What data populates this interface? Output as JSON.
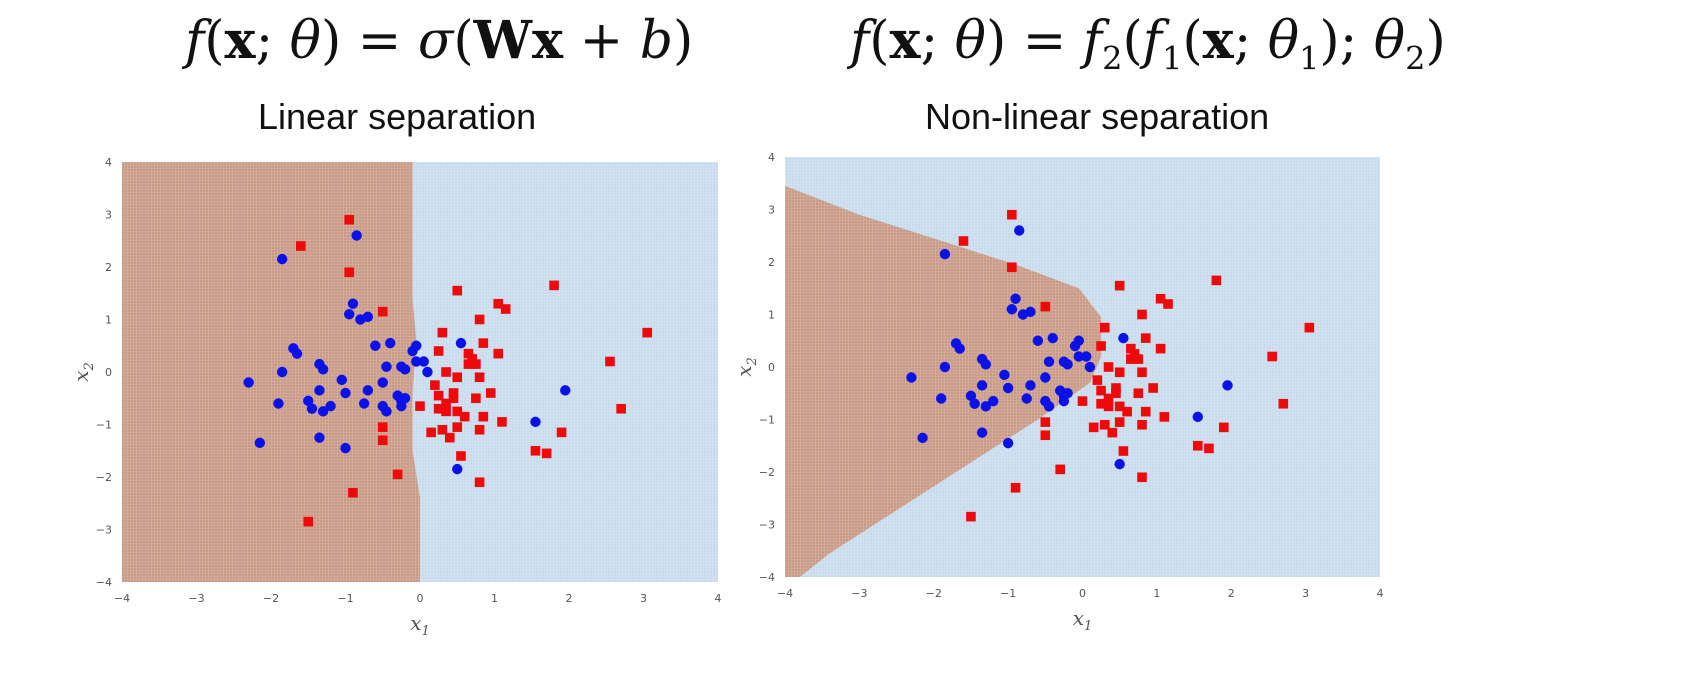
{
  "colors": {
    "region_red": "#c99a86",
    "region_blue": "#c8dbed",
    "point_blue": "#0a12e8",
    "point_red": "#ee0a0a"
  },
  "charts": [
    {
      "formula_label": "f(x; θ) = σ(Wx + b)",
      "subtitle": "Linear separation"
    },
    {
      "formula_label": "f(x; θ) = f2(f1(x; θ1); θ2)",
      "subtitle": "Non-linear separation"
    }
  ],
  "chart_data": [
    {
      "type": "scatter",
      "title": "Linear separation",
      "xlabel": "x1",
      "ylabel": "x2",
      "xlim": [
        -4,
        4
      ],
      "ylim": [
        -4,
        4
      ],
      "xticks": [
        "−4",
        "−3",
        "−2",
        "−1",
        "0",
        "1",
        "2",
        "3",
        "4"
      ],
      "yticks": [
        "−4",
        "−3",
        "−2",
        "−1",
        "0",
        "1",
        "2",
        "3",
        "4"
      ],
      "grid": false,
      "regions": [
        {
          "class": "red",
          "boundary": [
            [
              -0.1,
              4
            ],
            [
              -0.1,
              1.4
            ],
            [
              -0.05,
              0.6
            ],
            [
              -0.1,
              -0.4
            ],
            [
              -0.1,
              -1.5
            ],
            [
              0.0,
              -2.4
            ],
            [
              0.0,
              -4
            ]
          ]
        },
        {
          "class": "blue",
          "note": "remainder"
        }
      ],
      "series": [
        {
          "marker": "circle",
          "color": "#0a12e8",
          "points": [
            [
              -0.85,
              2.6
            ],
            [
              -1.85,
              2.15
            ],
            [
              -0.9,
              1.3
            ],
            [
              -0.95,
              1.1
            ],
            [
              -0.8,
              1.0
            ],
            [
              -0.7,
              1.05
            ],
            [
              -0.6,
              0.5
            ],
            [
              -0.4,
              0.55
            ],
            [
              -0.05,
              0.5
            ],
            [
              -0.1,
              0.4
            ],
            [
              -0.05,
              0.2
            ],
            [
              0.55,
              0.55
            ],
            [
              -1.7,
              0.45
            ],
            [
              -1.65,
              0.35
            ],
            [
              -1.35,
              0.15
            ],
            [
              -1.3,
              0.05
            ],
            [
              -1.85,
              0.0
            ],
            [
              -0.45,
              0.1
            ],
            [
              -0.2,
              0.05
            ],
            [
              -0.25,
              0.1
            ],
            [
              0.05,
              0.2
            ],
            [
              -1.05,
              -0.15
            ],
            [
              -2.3,
              -0.2
            ],
            [
              -1.35,
              -0.35
            ],
            [
              -1.0,
              -0.4
            ],
            [
              -0.7,
              -0.35
            ],
            [
              -0.3,
              -0.45
            ],
            [
              -1.5,
              -0.55
            ],
            [
              -1.9,
              -0.6
            ],
            [
              -1.2,
              -0.65
            ],
            [
              -1.3,
              -0.75
            ],
            [
              -1.45,
              -0.7
            ],
            [
              -0.75,
              -0.6
            ],
            [
              -0.25,
              -0.55
            ],
            [
              -0.5,
              -0.65
            ],
            [
              -0.25,
              -0.65
            ],
            [
              -1.35,
              -1.25
            ],
            [
              -2.15,
              -1.35
            ],
            [
              -1.0,
              -1.45
            ],
            [
              -0.45,
              -0.75
            ],
            [
              1.95,
              -0.35
            ],
            [
              1.55,
              -0.95
            ],
            [
              0.5,
              -1.85
            ],
            [
              0.1,
              0.0
            ],
            [
              -0.2,
              -0.5
            ],
            [
              -0.5,
              -0.2
            ]
          ]
        },
        {
          "marker": "square",
          "color": "#ee0a0a",
          "points": [
            [
              -0.95,
              2.9
            ],
            [
              -1.6,
              2.4
            ],
            [
              -0.95,
              1.9
            ],
            [
              1.8,
              1.65
            ],
            [
              0.5,
              1.55
            ],
            [
              1.05,
              1.3
            ],
            [
              1.15,
              1.2
            ],
            [
              -0.5,
              1.15
            ],
            [
              0.8,
              1.0
            ],
            [
              0.3,
              0.75
            ],
            [
              0.85,
              0.55
            ],
            [
              0.25,
              0.4
            ],
            [
              0.65,
              0.35
            ],
            [
              1.05,
              0.35
            ],
            [
              0.7,
              0.25
            ],
            [
              0.65,
              0.15
            ],
            [
              0.75,
              0.15
            ],
            [
              0.35,
              0.0
            ],
            [
              0.8,
              -0.1
            ],
            [
              0.5,
              -0.1
            ],
            [
              0.2,
              -0.25
            ],
            [
              0.95,
              -0.4
            ],
            [
              0.25,
              -0.45
            ],
            [
              0.45,
              -0.5
            ],
            [
              -0.0,
              -0.65
            ],
            [
              0.35,
              -0.6
            ],
            [
              0.25,
              -0.7
            ],
            [
              0.35,
              -0.75
            ],
            [
              0.5,
              -0.75
            ],
            [
              0.6,
              -0.85
            ],
            [
              0.85,
              -0.85
            ],
            [
              1.1,
              -0.95
            ],
            [
              0.5,
              -1.05
            ],
            [
              0.3,
              -1.1
            ],
            [
              0.15,
              -1.15
            ],
            [
              0.4,
              -1.25
            ],
            [
              -0.5,
              -1.05
            ],
            [
              -0.5,
              -1.3
            ],
            [
              0.8,
              -1.1
            ],
            [
              2.55,
              0.2
            ],
            [
              3.05,
              0.75
            ],
            [
              2.7,
              -0.7
            ],
            [
              1.9,
              -1.15
            ],
            [
              1.55,
              -1.5
            ],
            [
              1.7,
              -1.55
            ],
            [
              0.55,
              -1.6
            ],
            [
              -0.3,
              -1.95
            ],
            [
              0.8,
              -2.1
            ],
            [
              -0.9,
              -2.3
            ],
            [
              -1.5,
              -2.85
            ],
            [
              0.75,
              -0.5
            ],
            [
              0.45,
              -0.4
            ]
          ]
        }
      ]
    },
    {
      "type": "scatter",
      "title": "Non-linear separation",
      "xlabel": "x1",
      "ylabel": "x2",
      "xlim": [
        -4,
        4
      ],
      "ylim": [
        -4,
        4
      ],
      "xticks": [
        "−4",
        "−3",
        "−2",
        "−1",
        "0",
        "1",
        "2",
        "3",
        "4"
      ],
      "yticks": [
        "−4",
        "−3",
        "−2",
        "−1",
        "0",
        "1",
        "2",
        "3",
        "4"
      ],
      "grid": false,
      "regions": [
        {
          "class": "red",
          "boundary": [
            [
              -4,
              3.45
            ],
            [
              -3.0,
              2.9
            ],
            [
              -2.0,
              2.45
            ],
            [
              -0.9,
              1.95
            ],
            [
              -0.05,
              1.5
            ],
            [
              0.25,
              0.95
            ],
            [
              0.25,
              0.2
            ],
            [
              0.1,
              -0.3
            ],
            [
              -0.6,
              -1.0
            ],
            [
              -1.7,
              -2.0
            ],
            [
              -3.4,
              -3.55
            ],
            [
              -3.8,
              -4.0
            ],
            [
              -4,
              -4
            ]
          ]
        },
        {
          "class": "blue",
          "note": "remainder"
        }
      ],
      "series": [
        {
          "marker": "circle",
          "color": "#0a12e8",
          "points": [
            [
              -0.85,
              2.6
            ],
            [
              -1.85,
              2.15
            ],
            [
              -0.9,
              1.3
            ],
            [
              -0.95,
              1.1
            ],
            [
              -0.8,
              1.0
            ],
            [
              -0.7,
              1.05
            ],
            [
              -0.6,
              0.5
            ],
            [
              -0.4,
              0.55
            ],
            [
              -0.05,
              0.5
            ],
            [
              -0.1,
              0.4
            ],
            [
              -0.05,
              0.2
            ],
            [
              0.55,
              0.55
            ],
            [
              -1.7,
              0.45
            ],
            [
              -1.65,
              0.35
            ],
            [
              -1.35,
              0.15
            ],
            [
              -1.3,
              0.05
            ],
            [
              -1.85,
              0.0
            ],
            [
              -0.45,
              0.1
            ],
            [
              -0.2,
              0.05
            ],
            [
              -0.25,
              0.1
            ],
            [
              0.05,
              0.2
            ],
            [
              -1.05,
              -0.15
            ],
            [
              -2.3,
              -0.2
            ],
            [
              -1.35,
              -0.35
            ],
            [
              -1.0,
              -0.4
            ],
            [
              -0.7,
              -0.35
            ],
            [
              -0.3,
              -0.45
            ],
            [
              -1.5,
              -0.55
            ],
            [
              -1.9,
              -0.6
            ],
            [
              -1.2,
              -0.65
            ],
            [
              -1.3,
              -0.75
            ],
            [
              -1.45,
              -0.7
            ],
            [
              -0.75,
              -0.6
            ],
            [
              -0.25,
              -0.55
            ],
            [
              -0.5,
              -0.65
            ],
            [
              -0.25,
              -0.65
            ],
            [
              -1.35,
              -1.25
            ],
            [
              -2.15,
              -1.35
            ],
            [
              -1.0,
              -1.45
            ],
            [
              -0.45,
              -0.75
            ],
            [
              1.95,
              -0.35
            ],
            [
              1.55,
              -0.95
            ],
            [
              0.5,
              -1.85
            ],
            [
              0.1,
              0.0
            ],
            [
              -0.2,
              -0.5
            ],
            [
              -0.5,
              -0.2
            ]
          ]
        },
        {
          "marker": "square",
          "color": "#ee0a0a",
          "points": [
            [
              -0.95,
              2.9
            ],
            [
              -1.6,
              2.4
            ],
            [
              -0.95,
              1.9
            ],
            [
              1.8,
              1.65
            ],
            [
              0.5,
              1.55
            ],
            [
              1.05,
              1.3
            ],
            [
              1.15,
              1.2
            ],
            [
              -0.5,
              1.15
            ],
            [
              0.8,
              1.0
            ],
            [
              0.3,
              0.75
            ],
            [
              0.85,
              0.55
            ],
            [
              0.25,
              0.4
            ],
            [
              0.65,
              0.35
            ],
            [
              1.05,
              0.35
            ],
            [
              0.7,
              0.25
            ],
            [
              0.65,
              0.15
            ],
            [
              0.75,
              0.15
            ],
            [
              0.35,
              0.0
            ],
            [
              0.8,
              -0.1
            ],
            [
              0.5,
              -0.1
            ],
            [
              0.2,
              -0.25
            ],
            [
              0.95,
              -0.4
            ],
            [
              0.25,
              -0.45
            ],
            [
              0.45,
              -0.5
            ],
            [
              -0.0,
              -0.65
            ],
            [
              0.35,
              -0.6
            ],
            [
              0.25,
              -0.7
            ],
            [
              0.35,
              -0.75
            ],
            [
              0.5,
              -0.75
            ],
            [
              0.6,
              -0.85
            ],
            [
              0.85,
              -0.85
            ],
            [
              1.1,
              -0.95
            ],
            [
              0.5,
              -1.05
            ],
            [
              0.3,
              -1.1
            ],
            [
              0.15,
              -1.15
            ],
            [
              0.4,
              -1.25
            ],
            [
              -0.5,
              -1.05
            ],
            [
              -0.5,
              -1.3
            ],
            [
              0.8,
              -1.1
            ],
            [
              2.55,
              0.2
            ],
            [
              3.05,
              0.75
            ],
            [
              2.7,
              -0.7
            ],
            [
              1.9,
              -1.15
            ],
            [
              1.55,
              -1.5
            ],
            [
              1.7,
              -1.55
            ],
            [
              0.55,
              -1.6
            ],
            [
              -0.3,
              -1.95
            ],
            [
              0.8,
              -2.1
            ],
            [
              -0.9,
              -2.3
            ],
            [
              -1.5,
              -2.85
            ],
            [
              0.75,
              -0.5
            ],
            [
              0.45,
              -0.4
            ]
          ]
        }
      ]
    }
  ]
}
